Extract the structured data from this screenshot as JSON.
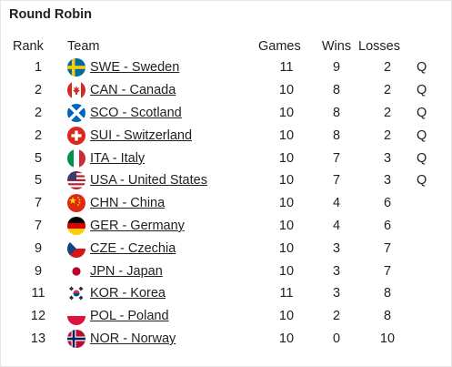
{
  "section": {
    "title": "Round Robin"
  },
  "columns": {
    "rank": "Rank",
    "team": "Team",
    "games": "Games",
    "wins": "Wins",
    "losses": "Losses"
  },
  "rows": [
    {
      "rank": "1",
      "team": "SWE - Sweden",
      "flag": "sweden-flag-icon",
      "games": "11",
      "wins": "9",
      "losses": "2",
      "q": "Q"
    },
    {
      "rank": "2",
      "team": "CAN - Canada",
      "flag": "canada-flag-icon",
      "games": "10",
      "wins": "8",
      "losses": "2",
      "q": "Q"
    },
    {
      "rank": "2",
      "team": "SCO - Scotland",
      "flag": "scotland-flag-icon",
      "games": "10",
      "wins": "8",
      "losses": "2",
      "q": "Q"
    },
    {
      "rank": "2",
      "team": "SUI - Switzerland",
      "flag": "switzerland-flag-icon",
      "games": "10",
      "wins": "8",
      "losses": "2",
      "q": "Q"
    },
    {
      "rank": "5",
      "team": "ITA - Italy",
      "flag": "italy-flag-icon",
      "games": "10",
      "wins": "7",
      "losses": "3",
      "q": "Q"
    },
    {
      "rank": "5",
      "team": "USA - United States",
      "flag": "usa-flag-icon",
      "games": "10",
      "wins": "7",
      "losses": "3",
      "q": "Q"
    },
    {
      "rank": "7",
      "team": "CHN - China",
      "flag": "china-flag-icon",
      "games": "10",
      "wins": "4",
      "losses": "6",
      "q": ""
    },
    {
      "rank": "7",
      "team": "GER - Germany",
      "flag": "germany-flag-icon",
      "games": "10",
      "wins": "4",
      "losses": "6",
      "q": ""
    },
    {
      "rank": "9",
      "team": "CZE - Czechia",
      "flag": "czechia-flag-icon",
      "games": "10",
      "wins": "3",
      "losses": "7",
      "q": ""
    },
    {
      "rank": "9",
      "team": "JPN - Japan",
      "flag": "japan-flag-icon",
      "games": "10",
      "wins": "3",
      "losses": "7",
      "q": ""
    },
    {
      "rank": "11",
      "team": "KOR - Korea",
      "flag": "korea-flag-icon",
      "games": "11",
      "wins": "3",
      "losses": "8",
      "q": ""
    },
    {
      "rank": "12",
      "team": "POL - Poland",
      "flag": "poland-flag-icon",
      "games": "10",
      "wins": "2",
      "losses": "8",
      "q": ""
    },
    {
      "rank": "13",
      "team": "NOR - Norway",
      "flag": "norway-flag-icon",
      "games": "10",
      "wins": "0",
      "losses": "10",
      "q": ""
    }
  ]
}
